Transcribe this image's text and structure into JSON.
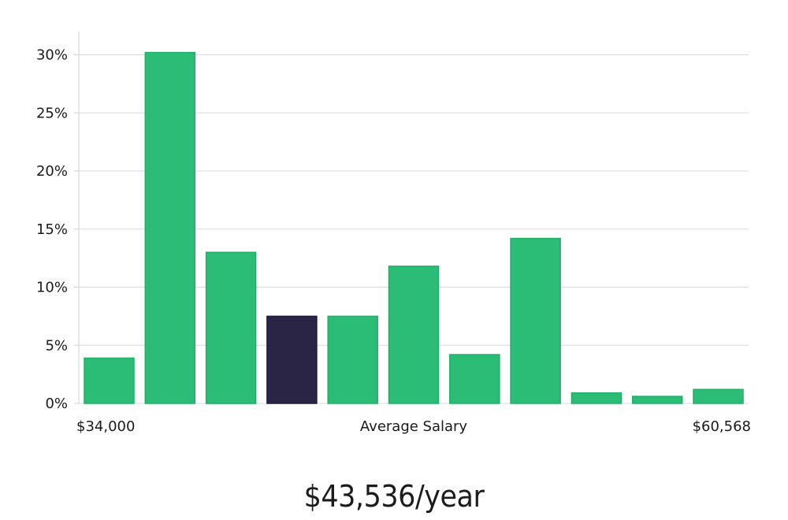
{
  "chart_data": {
    "type": "bar",
    "categories": [
      "1",
      "2",
      "3",
      "4",
      "5",
      "6",
      "7",
      "8",
      "9",
      "10",
      "11"
    ],
    "values": [
      3.9,
      30.2,
      13.0,
      7.5,
      7.5,
      11.8,
      4.2,
      14.2,
      0.9,
      0.6,
      1.2
    ],
    "highlight_index": 3,
    "ylim": [
      0,
      32
    ],
    "yticks": [
      0,
      5,
      10,
      15,
      20,
      25,
      30
    ],
    "ytick_suffix": "%",
    "x_min_label": "$34,000",
    "x_max_label": "$60,568",
    "xlabel": "Average Salary",
    "grid": true,
    "colors": {
      "bar": "#2bbd76",
      "highlight": "#2a2545",
      "grid": "#d9d9d9",
      "axis": "#d0d0d0"
    }
  },
  "headline": "$43,536/year"
}
